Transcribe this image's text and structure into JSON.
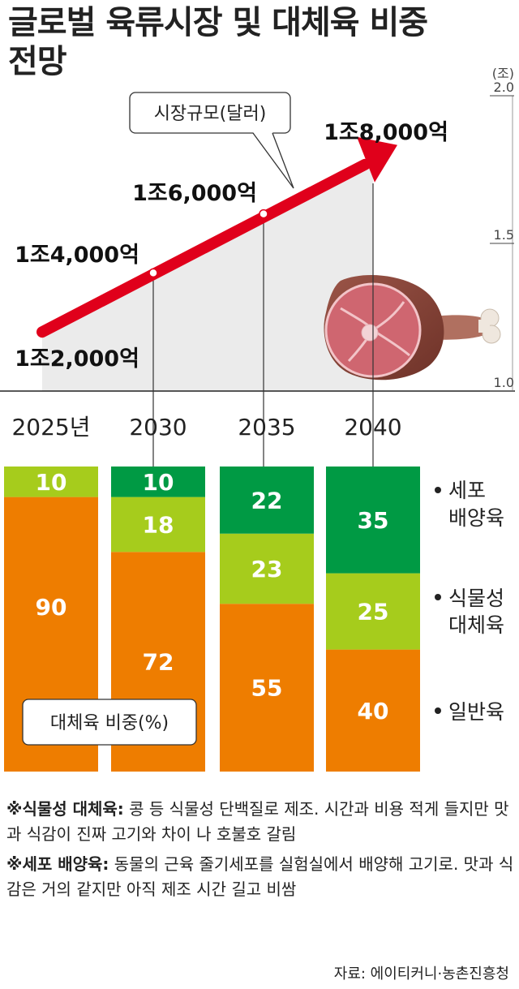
{
  "title_lines": [
    "글로벌 육류시장 및 대체육 비중",
    "전망"
  ],
  "line_chart": {
    "label": "시장규모(달러)",
    "unit": "(조)",
    "ylim": [
      1.0,
      2.0
    ],
    "yticks": [
      "2.0",
      "1.5",
      "1.0"
    ]
  },
  "bar_chart": {
    "label": "대체육 비중(%)"
  },
  "chart_data": [
    {
      "type": "line",
      "title": "시장규모(달러)",
      "ylabel": "(조)",
      "ylim": [
        1.0,
        2.0
      ],
      "x": [
        "2025년",
        "2030",
        "2035",
        "2040"
      ],
      "values": [
        1.2,
        1.4,
        1.6,
        1.8
      ],
      "data_labels": [
        "1조2,000억",
        "1조4,000억",
        "1조6,000억",
        "1조8,000억"
      ]
    },
    {
      "type": "bar",
      "stacked": true,
      "title": "대체육 비중(%)",
      "categories": [
        "2025년",
        "2030",
        "2035",
        "2040"
      ],
      "series": [
        {
          "name": "일반육",
          "values": [
            90,
            72,
            55,
            40
          ],
          "color": "#ee7d00"
        },
        {
          "name": "식물성 대체육",
          "values": [
            10,
            18,
            23,
            25
          ],
          "color": "#a6cc1c"
        },
        {
          "name": "세포 배양육",
          "values": [
            0,
            10,
            22,
            35
          ],
          "color": "#009a44"
        }
      ],
      "legend_labels": [
        [
          "세포",
          "배양육"
        ],
        [
          "식물성",
          "대체육"
        ],
        [
          "일반육"
        ]
      ],
      "legend_placement": "right"
    }
  ],
  "notes": [
    {
      "term": "※식물성 대체육:",
      "text": " 콩 등 식물성 단백질로 제조. 시간과 비용 적게 들지만 맛과 식감이 진짜 고기와 차이 나 호불호 갈림"
    },
    {
      "term": "※세포 배양육:",
      "text": " 동물의 근육 줄기세포를 실험실에서 배양해 고기로. 맛과 식감은 거의 같지만 아직 제조 시간 길고 비쌈"
    }
  ],
  "source": "자료: 에이티커니·농촌진흥청"
}
